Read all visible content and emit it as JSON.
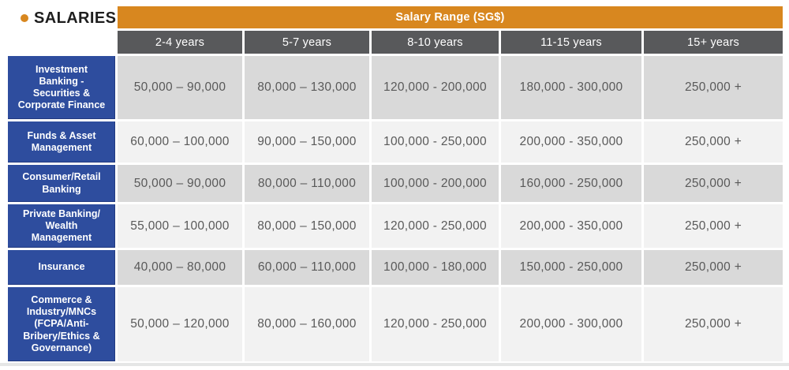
{
  "title": "SALARIES",
  "colors": {
    "orange": "#D8871F",
    "header-gray": "#58595B",
    "row-blue": "#2E4D9E",
    "band-dark": "#D9D9D9",
    "band-light": "#F2F2F2",
    "data-text": "#595959",
    "title-text": "#1E1E1E",
    "shadow": "#DCDDDE"
  },
  "table": {
    "header": "Salary Range (SG$)",
    "columns": [
      "2-4 years",
      "5-7 years",
      "8-10 years",
      "11-15 years",
      "15+ years"
    ],
    "rows": [
      {
        "label": "Investment\nBanking -\nSecurities &\nCorporate Finance",
        "cells": [
          "50,000 – 90,000",
          "80,000 – 130,000",
          "120,000 - 200,000",
          "180,000 - 300,000",
          "250,000 +"
        ]
      },
      {
        "label": "Funds & Asset\nManagement",
        "cells": [
          "60,000 – 100,000",
          "90,000 – 150,000",
          "100,000 - 250,000",
          "200,000 - 350,000",
          "250,000 +"
        ]
      },
      {
        "label": "Consumer/Retail\nBanking",
        "cells": [
          "50,000 – 90,000",
          "80,000 – 110,000",
          "100,000 - 200,000",
          "160,000 - 250,000",
          "250,000 +"
        ]
      },
      {
        "label": "Private Banking/\nWealth\nManagement",
        "cells": [
          "55,000 – 100,000",
          "80,000 – 150,000",
          "120,000 - 250,000",
          "200,000 - 350,000",
          "250,000 +"
        ]
      },
      {
        "label": "Insurance",
        "cells": [
          "40,000 – 80,000",
          "60,000 – 110,000",
          "100,000 - 180,000",
          "150,000 - 250,000",
          "250,000 +"
        ]
      },
      {
        "label": "Commerce &\nIndustry/MNCs\n(FCPA/Anti-\nBribery/Ethics &\nGovernance)",
        "cells": [
          "50,000 – 120,000",
          "80,000 – 160,000",
          "120,000 - 250,000",
          "200,000 - 300,000",
          "250,000 +"
        ]
      }
    ]
  }
}
